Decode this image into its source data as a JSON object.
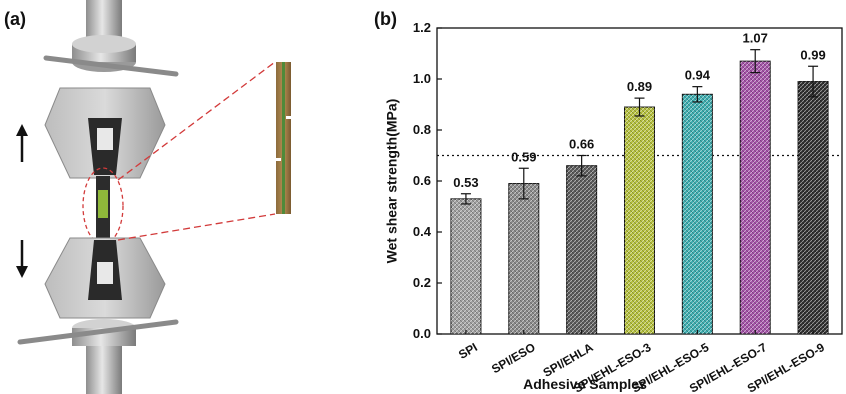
{
  "panel_a": {
    "label": "(a)"
  },
  "panel_b": {
    "label": "(b)"
  },
  "chart_data": {
    "type": "bar",
    "categories": [
      "SPI",
      "SPI/ESO",
      "SPI/EHLA",
      "SPI/EHL-ESO-3",
      "SPI/EHL-ESO-5",
      "SPI/EHL-ESO-7",
      "SPI/EHL-ESO-9"
    ],
    "values": [
      0.53,
      0.59,
      0.66,
      0.89,
      0.94,
      1.07,
      0.99
    ],
    "value_labels": [
      "0.53",
      "0.59",
      "0.66",
      "0.89",
      "0.94",
      "1.07",
      "0.99"
    ],
    "errors": [
      0.02,
      0.06,
      0.04,
      0.035,
      0.03,
      0.045,
      0.06
    ],
    "colors": [
      "#a0a0a0",
      "#8a8a8a",
      "#5a5a5a",
      "#b6c23a",
      "#3aaeb0",
      "#a450a8",
      "#2e2e2e"
    ],
    "xlabel": "Adhesive Samples",
    "ylabel": "Wet shear strength(MPa)",
    "ylim": [
      0.0,
      1.2
    ],
    "yticks": [
      "0.0",
      "0.2",
      "0.4",
      "0.6",
      "0.8",
      "1.0",
      "1.2"
    ],
    "reference_line": 0.7,
    "grid": false,
    "legend": "none"
  }
}
